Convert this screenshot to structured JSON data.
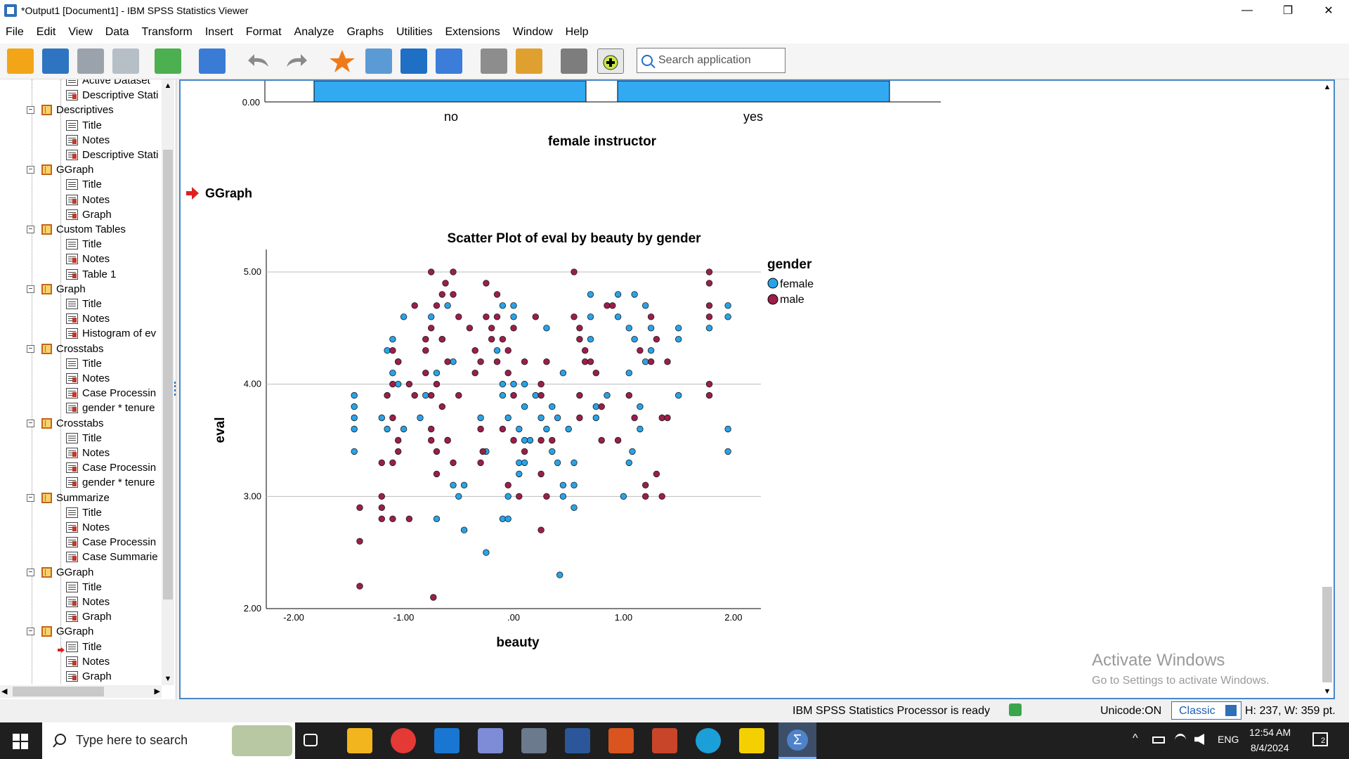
{
  "window": {
    "title": "*Output1 [Document1] - IBM SPSS Statistics Viewer",
    "minimize": "—",
    "maximize": "❐",
    "close": "✕"
  },
  "menu": [
    "File",
    "Edit",
    "View",
    "Data",
    "Transform",
    "Insert",
    "Format",
    "Analyze",
    "Graphs",
    "Utilities",
    "Extensions",
    "Window",
    "Help"
  ],
  "toolbar": {
    "search_placeholder": "Search application",
    "icons": [
      "open-icon",
      "save-icon",
      "print-icon",
      "print-preview-icon",
      "export-icon",
      "goto-data-icon",
      "undo-icon",
      "redo-icon",
      "star-icon",
      "pivot-icon",
      "arrow-down-icon",
      "variables-icon",
      "edit-icon",
      "script-icon",
      "designate-icon",
      "add-icon"
    ]
  },
  "outline": {
    "items": [
      {
        "level": 2,
        "icon": "doc",
        "label": "Active Dataset"
      },
      {
        "level": 2,
        "icon": "doc-red",
        "label": "Descriptive Stati"
      },
      {
        "level": 1,
        "icon": "book",
        "label": "Descriptives"
      },
      {
        "level": 2,
        "icon": "doc",
        "label": "Title"
      },
      {
        "level": 2,
        "icon": "doc-red",
        "label": "Notes"
      },
      {
        "level": 2,
        "icon": "doc-red",
        "label": "Descriptive Stati"
      },
      {
        "level": 1,
        "icon": "book",
        "label": "GGraph"
      },
      {
        "level": 2,
        "icon": "doc",
        "label": "Title"
      },
      {
        "level": 2,
        "icon": "doc-red",
        "label": "Notes"
      },
      {
        "level": 2,
        "icon": "doc-red",
        "label": "Graph"
      },
      {
        "level": 1,
        "icon": "book",
        "label": "Custom Tables"
      },
      {
        "level": 2,
        "icon": "doc",
        "label": "Title"
      },
      {
        "level": 2,
        "icon": "doc-red",
        "label": "Notes"
      },
      {
        "level": 2,
        "icon": "doc-red",
        "label": "Table 1"
      },
      {
        "level": 1,
        "icon": "book",
        "label": "Graph"
      },
      {
        "level": 2,
        "icon": "doc",
        "label": "Title"
      },
      {
        "level": 2,
        "icon": "doc-red",
        "label": "Notes"
      },
      {
        "level": 2,
        "icon": "doc-red",
        "label": "Histogram of ev"
      },
      {
        "level": 1,
        "icon": "book",
        "label": "Crosstabs"
      },
      {
        "level": 2,
        "icon": "doc",
        "label": "Title"
      },
      {
        "level": 2,
        "icon": "doc-red",
        "label": "Notes"
      },
      {
        "level": 2,
        "icon": "doc-red",
        "label": "Case Processin"
      },
      {
        "level": 2,
        "icon": "doc-red",
        "label": "gender * tenure"
      },
      {
        "level": 1,
        "icon": "book",
        "label": "Crosstabs"
      },
      {
        "level": 2,
        "icon": "doc",
        "label": "Title"
      },
      {
        "level": 2,
        "icon": "doc-red",
        "label": "Notes"
      },
      {
        "level": 2,
        "icon": "doc-red",
        "label": "Case Processin"
      },
      {
        "level": 2,
        "icon": "doc-red",
        "label": "gender * tenure"
      },
      {
        "level": 1,
        "icon": "book",
        "label": "Summarize"
      },
      {
        "level": 2,
        "icon": "doc",
        "label": "Title"
      },
      {
        "level": 2,
        "icon": "doc-red",
        "label": "Notes"
      },
      {
        "level": 2,
        "icon": "doc-red",
        "label": "Case Processin"
      },
      {
        "level": 2,
        "icon": "doc-red",
        "label": "Case Summarie"
      },
      {
        "level": 1,
        "icon": "book",
        "label": "GGraph"
      },
      {
        "level": 2,
        "icon": "doc",
        "label": "Title"
      },
      {
        "level": 2,
        "icon": "doc-red",
        "label": "Notes"
      },
      {
        "level": 2,
        "icon": "doc-red",
        "label": "Graph"
      },
      {
        "level": 1,
        "icon": "book",
        "label": "GGraph"
      },
      {
        "level": 2,
        "icon": "doc",
        "label": "Title",
        "current": true
      },
      {
        "level": 2,
        "icon": "doc-red",
        "label": "Notes"
      },
      {
        "level": 2,
        "icon": "doc-red",
        "label": "Graph"
      }
    ]
  },
  "viewer": {
    "prev_chart": {
      "zero_label": "0.00",
      "categories": [
        "no",
        "yes"
      ],
      "xlabel": "female instructor"
    },
    "section_heading": "GGraph"
  },
  "chart_data": {
    "type": "scatter",
    "title": "Scatter Plot of eval by beauty by gender",
    "xlabel": "beauty",
    "ylabel": "eval",
    "xlim": [
      -2.25,
      2.25
    ],
    "ylim": [
      2.0,
      5.2
    ],
    "x_ticks": [
      -2.0,
      -1.0,
      0.0,
      1.0,
      2.0
    ],
    "x_tick_labels": [
      "-2.00",
      "-1.00",
      ".00",
      "1.00",
      "2.00"
    ],
    "y_ticks": [
      2.0,
      3.0,
      4.0,
      5.0
    ],
    "y_tick_labels": [
      "2.00",
      "3.00",
      "4.00",
      "5.00"
    ],
    "grid": "horizontal",
    "legend_title": "gender",
    "legend_position": "right",
    "series": [
      {
        "name": "female",
        "color": "#29a3e8",
        "points": [
          [
            -1.45,
            3.9
          ],
          [
            -1.45,
            3.8
          ],
          [
            -1.45,
            3.7
          ],
          [
            -1.45,
            3.6
          ],
          [
            -1.45,
            3.4
          ],
          [
            -1.1,
            4.4
          ],
          [
            -1.15,
            4.3
          ],
          [
            -1.05,
            4.2
          ],
          [
            -1.1,
            4.1
          ],
          [
            -1.05,
            4.0
          ],
          [
            -1.0,
            4.6
          ],
          [
            -1.2,
            3.7
          ],
          [
            -1.15,
            3.6
          ],
          [
            -1.0,
            3.6
          ],
          [
            -0.85,
            3.7
          ],
          [
            -0.8,
            3.9
          ],
          [
            -0.75,
            4.6
          ],
          [
            -0.7,
            4.1
          ],
          [
            -0.65,
            4.4
          ],
          [
            -0.6,
            4.7
          ],
          [
            -0.55,
            4.2
          ],
          [
            -0.7,
            2.8
          ],
          [
            -0.6,
            3.5
          ],
          [
            -0.55,
            3.1
          ],
          [
            -0.5,
            3.0
          ],
          [
            -0.45,
            2.7
          ],
          [
            -0.45,
            3.1
          ],
          [
            -0.3,
            3.7
          ],
          [
            -0.25,
            3.4
          ],
          [
            -0.25,
            2.5
          ],
          [
            -0.15,
            4.3
          ],
          [
            -0.1,
            4.7
          ],
          [
            -0.1,
            4.0
          ],
          [
            -0.1,
            3.9
          ],
          [
            -0.1,
            2.8
          ],
          [
            -0.05,
            2.8
          ],
          [
            -0.05,
            3.7
          ],
          [
            -0.05,
            3.0
          ],
          [
            0.0,
            4.6
          ],
          [
            0.0,
            4.7
          ],
          [
            0.0,
            4.0
          ],
          [
            0.05,
            3.6
          ],
          [
            0.05,
            3.3
          ],
          [
            0.05,
            3.2
          ],
          [
            0.1,
            3.8
          ],
          [
            0.1,
            3.5
          ],
          [
            0.1,
            3.3
          ],
          [
            0.1,
            4.0
          ],
          [
            0.15,
            3.5
          ],
          [
            0.2,
            3.9
          ],
          [
            0.25,
            3.7
          ],
          [
            0.3,
            3.6
          ],
          [
            0.35,
            3.8
          ],
          [
            0.35,
            3.4
          ],
          [
            0.3,
            4.5
          ],
          [
            0.4,
            3.7
          ],
          [
            0.4,
            3.3
          ],
          [
            0.45,
            3.1
          ],
          [
            0.45,
            3.0
          ],
          [
            0.42,
            2.3
          ],
          [
            0.45,
            4.1
          ],
          [
            0.55,
            2.9
          ],
          [
            0.55,
            3.3
          ],
          [
            0.55,
            3.1
          ],
          [
            0.5,
            3.6
          ],
          [
            0.7,
            4.8
          ],
          [
            0.7,
            4.6
          ],
          [
            0.7,
            4.4
          ],
          [
            0.75,
            3.8
          ],
          [
            0.75,
            3.7
          ],
          [
            0.85,
            3.9
          ],
          [
            0.95,
            4.8
          ],
          [
            0.95,
            4.6
          ],
          [
            1.05,
            4.5
          ],
          [
            1.0,
            3.0
          ],
          [
            1.05,
            3.3
          ],
          [
            1.08,
            3.4
          ],
          [
            1.05,
            4.1
          ],
          [
            1.1,
            4.8
          ],
          [
            1.1,
            4.4
          ],
          [
            1.15,
            3.8
          ],
          [
            1.15,
            3.6
          ],
          [
            1.2,
            4.7
          ],
          [
            1.2,
            4.2
          ],
          [
            1.25,
            4.3
          ],
          [
            1.25,
            4.5
          ],
          [
            1.5,
            4.5
          ],
          [
            1.5,
            4.4
          ],
          [
            1.5,
            3.9
          ],
          [
            1.95,
            4.7
          ],
          [
            1.95,
            4.6
          ],
          [
            1.95,
            3.6
          ],
          [
            1.95,
            3.4
          ],
          [
            1.78,
            4.5
          ]
        ]
      },
      {
        "name": "male",
        "color": "#9b1e4b",
        "points": [
          [
            -1.4,
            2.9
          ],
          [
            -1.4,
            2.6
          ],
          [
            -1.4,
            2.2
          ],
          [
            -1.2,
            3.0
          ],
          [
            -1.2,
            2.9
          ],
          [
            -1.2,
            2.8
          ],
          [
            -1.2,
            3.3
          ],
          [
            -1.1,
            3.3
          ],
          [
            -1.1,
            2.8
          ],
          [
            -1.15,
            3.9
          ],
          [
            -1.1,
            4.3
          ],
          [
            -1.05,
            4.2
          ],
          [
            -1.1,
            4.0
          ],
          [
            -1.1,
            3.7
          ],
          [
            -1.05,
            3.5
          ],
          [
            -1.05,
            3.4
          ],
          [
            -0.95,
            4.0
          ],
          [
            -0.95,
            2.8
          ],
          [
            -0.9,
            4.7
          ],
          [
            -0.9,
            3.9
          ],
          [
            -0.8,
            4.4
          ],
          [
            -0.8,
            4.3
          ],
          [
            -0.75,
            5.0
          ],
          [
            -0.75,
            4.5
          ],
          [
            -0.8,
            4.1
          ],
          [
            -0.75,
            3.9
          ],
          [
            -0.75,
            3.6
          ],
          [
            -0.75,
            3.5
          ],
          [
            -0.7,
            3.4
          ],
          [
            -0.7,
            3.2
          ],
          [
            -0.7,
            4.7
          ],
          [
            -0.7,
            4.0
          ],
          [
            -0.65,
            4.8
          ],
          [
            -0.65,
            4.4
          ],
          [
            -0.65,
            3.8
          ],
          [
            -0.62,
            4.9
          ],
          [
            -0.6,
            3.5
          ],
          [
            -0.6,
            4.2
          ],
          [
            -0.55,
            5.0
          ],
          [
            -0.55,
            4.8
          ],
          [
            -0.5,
            4.6
          ],
          [
            -0.5,
            3.9
          ],
          [
            -0.55,
            3.3
          ],
          [
            -0.73,
            2.1
          ],
          [
            -0.4,
            4.5
          ],
          [
            -0.35,
            4.3
          ],
          [
            -0.35,
            4.1
          ],
          [
            -0.3,
            4.2
          ],
          [
            -0.3,
            3.3
          ],
          [
            -0.25,
            4.9
          ],
          [
            -0.25,
            4.6
          ],
          [
            -0.2,
            4.5
          ],
          [
            -0.2,
            4.4
          ],
          [
            -0.3,
            3.6
          ],
          [
            -0.28,
            3.4
          ],
          [
            -0.15,
            4.8
          ],
          [
            -0.15,
            4.6
          ],
          [
            -0.15,
            4.2
          ],
          [
            -0.1,
            4.4
          ],
          [
            -0.1,
            3.6
          ],
          [
            -0.05,
            4.3
          ],
          [
            -0.05,
            4.1
          ],
          [
            0.0,
            4.5
          ],
          [
            0.0,
            3.9
          ],
          [
            0.0,
            3.5
          ],
          [
            -0.05,
            3.1
          ],
          [
            0.05,
            3.0
          ],
          [
            0.1,
            4.2
          ],
          [
            0.1,
            3.4
          ],
          [
            0.2,
            4.6
          ],
          [
            0.25,
            4.0
          ],
          [
            0.25,
            3.9
          ],
          [
            0.25,
            3.2
          ],
          [
            0.3,
            4.2
          ],
          [
            0.25,
            3.5
          ],
          [
            0.3,
            3.0
          ],
          [
            0.25,
            2.7
          ],
          [
            0.35,
            3.5
          ],
          [
            0.55,
            5.0
          ],
          [
            0.55,
            4.6
          ],
          [
            0.6,
            4.5
          ],
          [
            0.6,
            4.4
          ],
          [
            0.65,
            4.3
          ],
          [
            0.65,
            4.2
          ],
          [
            0.7,
            4.2
          ],
          [
            0.6,
            3.9
          ],
          [
            0.6,
            3.7
          ],
          [
            0.75,
            4.1
          ],
          [
            0.8,
            3.8
          ],
          [
            0.8,
            3.5
          ],
          [
            0.85,
            4.7
          ],
          [
            0.9,
            4.7
          ],
          [
            0.95,
            3.5
          ],
          [
            1.05,
            3.9
          ],
          [
            1.1,
            3.7
          ],
          [
            1.15,
            4.3
          ],
          [
            1.2,
            3.1
          ],
          [
            1.2,
            3.0
          ],
          [
            1.25,
            4.6
          ],
          [
            1.25,
            4.2
          ],
          [
            1.3,
            3.2
          ],
          [
            1.3,
            4.4
          ],
          [
            1.35,
            3.7
          ],
          [
            1.4,
            3.7
          ],
          [
            1.4,
            4.2
          ],
          [
            1.35,
            3.0
          ],
          [
            1.78,
            5.0
          ],
          [
            1.78,
            4.9
          ],
          [
            1.78,
            4.7
          ],
          [
            1.78,
            4.6
          ],
          [
            1.78,
            4.0
          ],
          [
            1.78,
            3.9
          ]
        ]
      }
    ]
  },
  "status": {
    "processor": "IBM SPSS Statistics Processor is ready",
    "unicode": "Unicode:ON",
    "mode": "Classic",
    "size": "H: 237, W: 359 pt."
  },
  "watermark": {
    "line1": "Activate Windows",
    "line2": "Go to Settings to activate Windows."
  },
  "taskbar": {
    "search_placeholder": "Type here to search",
    "lang": "ENG",
    "time": "12:54 AM",
    "date": "8/4/2024",
    "notification_count": "2"
  }
}
